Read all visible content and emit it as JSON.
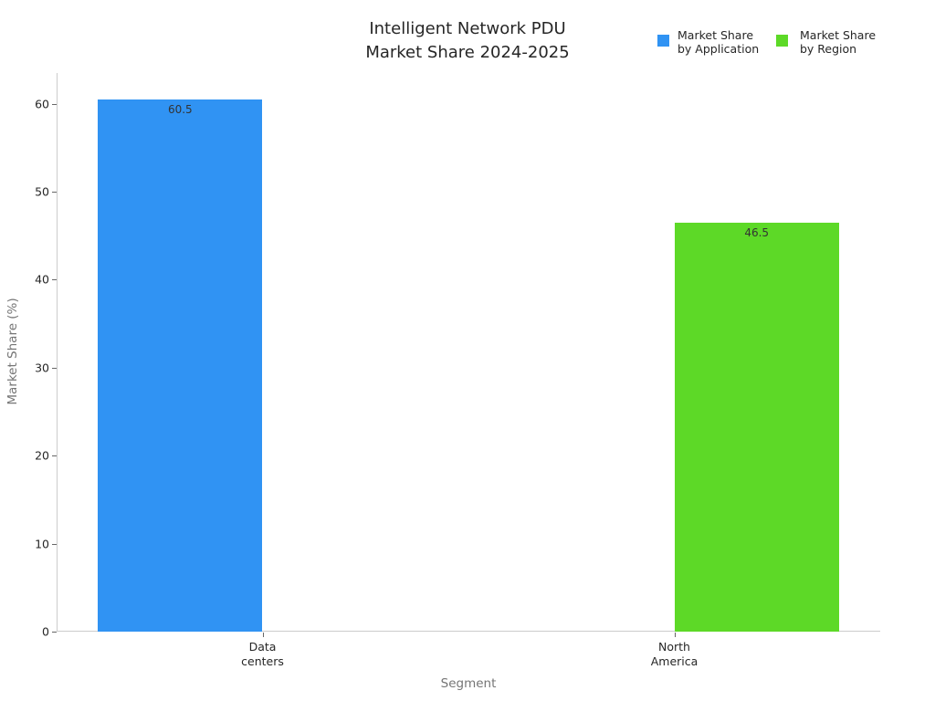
{
  "title": {
    "line1": "Intelligent Network PDU",
    "line2": "Market Share 2024-2025"
  },
  "legend": {
    "entries": [
      {
        "label_line1": "Market Share",
        "label_line2": "by Application",
        "color": "#3093F3"
      },
      {
        "label_line1": "Market Share",
        "label_line2": "by Region",
        "color": "#5DD927"
      }
    ]
  },
  "axes": {
    "x_label": "Segment",
    "y_label": "Market Share (%)",
    "y_tick_labels": [
      "0",
      "10",
      "20",
      "30",
      "40",
      "50",
      "60"
    ],
    "x_tick_labels": [
      {
        "line1": "Data",
        "line2": "centers"
      },
      {
        "line1": "North",
        "line2": "America"
      }
    ]
  },
  "chart_data": {
    "type": "bar",
    "title": "Intelligent Network PDU Market Share 2024-2025",
    "categories": [
      "Data centers",
      "North America"
    ],
    "series": [
      {
        "name": "Market Share by Application",
        "color": "#3093F3",
        "values": [
          60.5,
          0
        ]
      },
      {
        "name": "Market Share by Region",
        "color": "#5DD927",
        "values": [
          0,
          46.5
        ]
      }
    ],
    "value_labels": [
      "60.5",
      "46.5"
    ],
    "xlabel": "Segment",
    "ylabel": "Market Share (%)",
    "ylim": [
      0,
      63.5
    ],
    "yticks": [
      0,
      10,
      20,
      30,
      40,
      50,
      60
    ],
    "grid": false,
    "legend_position": "top-right",
    "background": "#ffffff"
  }
}
